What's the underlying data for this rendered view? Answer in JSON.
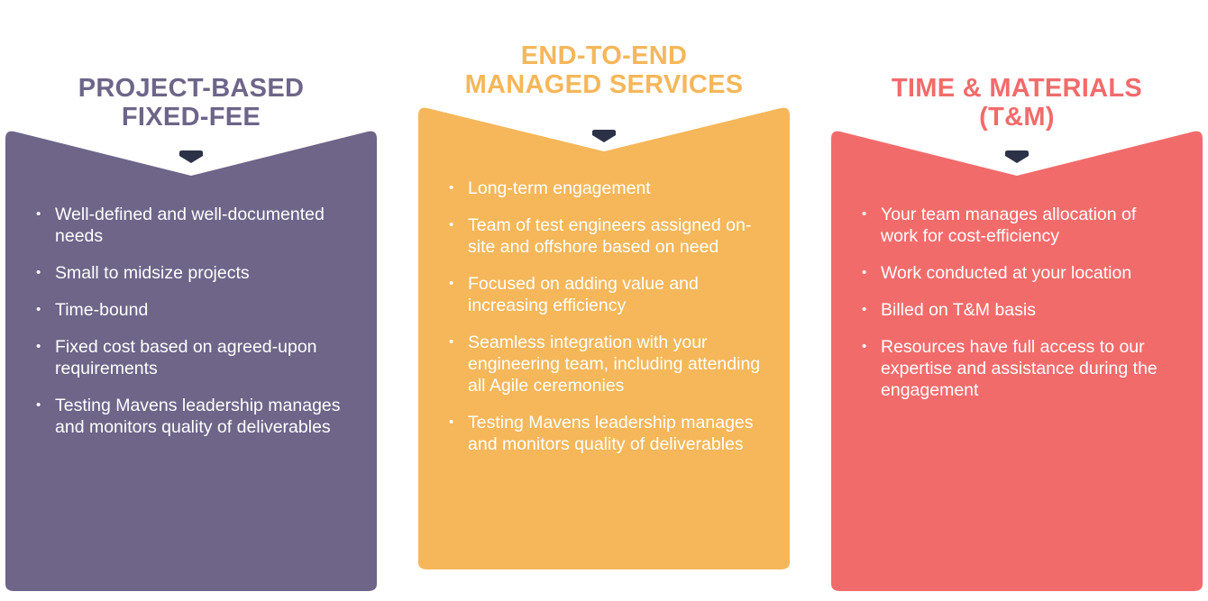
{
  "columns": [
    {
      "title_lines": [
        "PROJECT-BASED",
        "FIXED-FEE"
      ],
      "color": "#6e6589",
      "items": [
        "Well-defined and well-documented needs",
        "Small to midsize projects",
        "Time-bound",
        "Fixed cost based on agreed-upon requirements",
        "Testing Mavens leadership manages and monitors quality of deliverables"
      ]
    },
    {
      "title_lines": [
        "END-TO-END",
        "MANAGED SERVICES"
      ],
      "color": "#f5b75a",
      "items": [
        "Long-term engagement",
        "Team of test engineers assigned on-site and offshore based on need",
        "Focused on adding value and increasing efficiency",
        "Seamless integration with your engineering team, including attending all Agile ceremonies",
        "Testing Mavens leadership manages and monitors quality of deliverables"
      ]
    },
    {
      "title_lines": [
        "TIME & MATERIALS",
        "(T&M)"
      ],
      "color": "#f26b6b",
      "items": [
        "Your team manages allocation of work for cost-efficiency",
        "Work conducted at your location",
        "Billed on T&M basis",
        "Resources have full access to our expertise and assistance during the engagement"
      ]
    }
  ],
  "chevron_color": "#2b3247",
  "chevron_icon": "chevron-down-icon"
}
